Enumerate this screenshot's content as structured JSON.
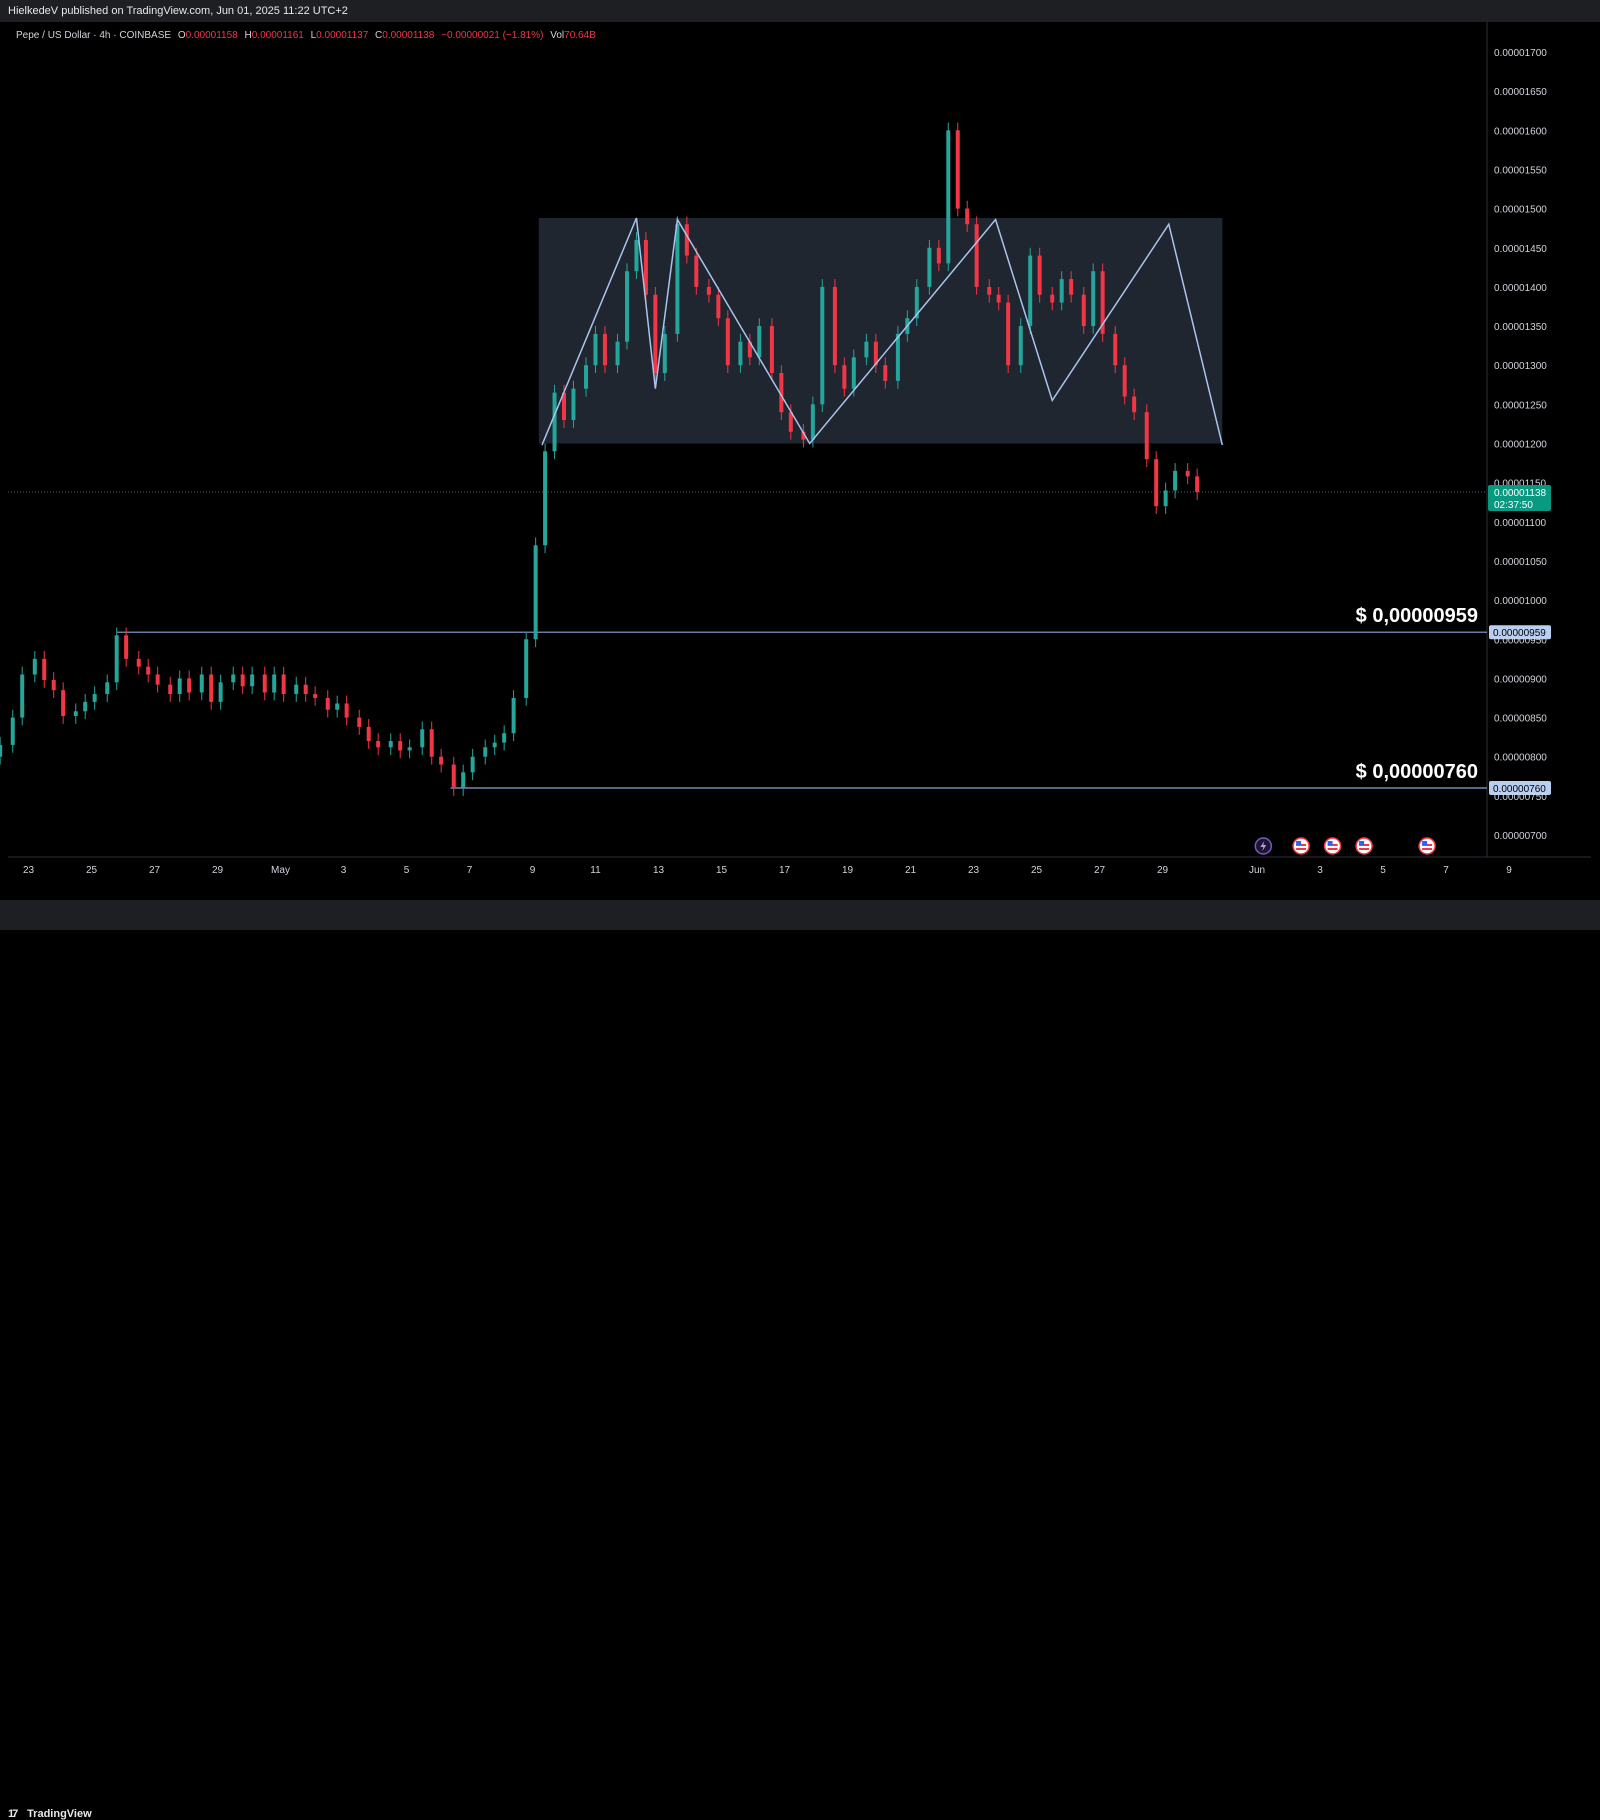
{
  "header": {
    "published": "HielkedeV published on TradingView.com, Jun 01, 2025 11:22 UTC+2"
  },
  "legend": {
    "symbol": "Pepe / US Dollar · 4h · COINBASE",
    "o_label": "O",
    "o_value": "0.00001158",
    "h_label": "H",
    "h_value": "0.00001161",
    "l_label": "L",
    "l_value": "0.00001137",
    "c_label": "C",
    "c_value": "0.00001138",
    "change": "−0.00000021 (−1.81%)",
    "vol_label": "Vol",
    "vol_value": "70.64B"
  },
  "footer": {
    "brand": "TradingView",
    "logo_mark": "17"
  },
  "colors": {
    "up": "#26a69a",
    "down": "#f23645",
    "box": "#1f2630",
    "zigzag": "#a9c4ee",
    "level": "#8aa6d8",
    "price_tag": "#089981"
  },
  "chart_data": {
    "type": "candlestick",
    "timeframe": "4h",
    "y_axis": {
      "ticks": [
        "0.00001700",
        "0.00001650",
        "0.00001600",
        "0.00001550",
        "0.00001500",
        "0.00001450",
        "0.00001400",
        "0.00001350",
        "0.00001300",
        "0.00001250",
        "0.00001200",
        "0.00001150",
        "0.00001100",
        "0.00001050",
        "0.00001000",
        "0.00000950",
        "0.00000900",
        "0.00000850",
        "0.00000800",
        "0.00000750",
        "0.00000700"
      ],
      "tick_values": [
        1700,
        1650,
        1600,
        1550,
        1500,
        1450,
        1400,
        1350,
        1300,
        1250,
        1200,
        1150,
        1100,
        1050,
        1000,
        950,
        900,
        850,
        800,
        750,
        700
      ],
      "unit_scale": "1e-8 USD"
    },
    "x_axis": {
      "ticks": [
        "23",
        "25",
        "27",
        "29",
        "May",
        "3",
        "5",
        "7",
        "9",
        "11",
        "13",
        "15",
        "17",
        "19",
        "21",
        "23",
        "25",
        "27",
        "29",
        "Jun",
        "3",
        "5",
        "7",
        "9"
      ],
      "tick_days": [
        -8,
        -6,
        -4,
        -2,
        0,
        2,
        4,
        6,
        8,
        10,
        12,
        14,
        16,
        18,
        20,
        22,
        24,
        26,
        28,
        31,
        33,
        35,
        37,
        39
      ]
    },
    "current_price": {
      "label": "0.00001138",
      "countdown": "02:37:50",
      "value": 1138
    },
    "levels": [
      {
        "label": "$ 0,00000959",
        "axis_label": "0.00000959",
        "value": 959,
        "from_day": -5.2
      },
      {
        "label": "$ 0,00000760",
        "axis_label": "0.00000760",
        "value": 760,
        "from_day": 5.4
      }
    ],
    "range_box": {
      "day_start": 8.2,
      "day_end": 29.9,
      "top": 1488,
      "bottom": 1200
    },
    "zigzag": [
      {
        "day": 8.3,
        "price": 1198
      },
      {
        "day": 11.3,
        "price": 1488
      },
      {
        "day": 11.9,
        "price": 1270
      },
      {
        "day": 12.6,
        "price": 1486
      },
      {
        "day": 16.8,
        "price": 1200
      },
      {
        "day": 22.7,
        "price": 1486
      },
      {
        "day": 24.5,
        "price": 1255
      },
      {
        "day": 28.2,
        "price": 1480
      },
      {
        "day": 29.9,
        "price": 1198
      }
    ],
    "candles": [
      {
        "d": -8.9,
        "o": 800,
        "c": 815
      },
      {
        "d": -8.5,
        "o": 815,
        "c": 850
      },
      {
        "d": -8.2,
        "o": 850,
        "c": 905
      },
      {
        "d": -7.8,
        "o": 905,
        "c": 925
      },
      {
        "d": -7.5,
        "o": 925,
        "c": 898
      },
      {
        "d": -7.2,
        "o": 898,
        "c": 885
      },
      {
        "d": -6.9,
        "o": 885,
        "c": 852
      },
      {
        "d": -6.5,
        "o": 852,
        "c": 858
      },
      {
        "d": -6.2,
        "o": 858,
        "c": 870
      },
      {
        "d": -5.9,
        "o": 870,
        "c": 880
      },
      {
        "d": -5.5,
        "o": 880,
        "c": 895
      },
      {
        "d": -5.2,
        "o": 895,
        "c": 955
      },
      {
        "d": -4.9,
        "o": 955,
        "c": 925
      },
      {
        "d": -4.5,
        "o": 925,
        "c": 915
      },
      {
        "d": -4.2,
        "o": 915,
        "c": 905
      },
      {
        "d": -3.9,
        "o": 905,
        "c": 892
      },
      {
        "d": -3.5,
        "o": 892,
        "c": 880
      },
      {
        "d": -3.2,
        "o": 880,
        "c": 900
      },
      {
        "d": -2.9,
        "o": 900,
        "c": 882
      },
      {
        "d": -2.5,
        "o": 882,
        "c": 905
      },
      {
        "d": -2.2,
        "o": 905,
        "c": 870
      },
      {
        "d": -1.9,
        "o": 870,
        "c": 895
      },
      {
        "d": -1.5,
        "o": 895,
        "c": 905
      },
      {
        "d": -1.2,
        "o": 905,
        "c": 890
      },
      {
        "d": -0.9,
        "o": 890,
        "c": 905
      },
      {
        "d": -0.5,
        "o": 905,
        "c": 882
      },
      {
        "d": -0.2,
        "o": 882,
        "c": 905
      },
      {
        "d": 0.1,
        "o": 905,
        "c": 880
      },
      {
        "d": 0.5,
        "o": 880,
        "c": 892
      },
      {
        "d": 0.8,
        "o": 892,
        "c": 880
      },
      {
        "d": 1.1,
        "o": 880,
        "c": 875
      },
      {
        "d": 1.5,
        "o": 875,
        "c": 860
      },
      {
        "d": 1.8,
        "o": 860,
        "c": 868
      },
      {
        "d": 2.1,
        "o": 868,
        "c": 850
      },
      {
        "d": 2.5,
        "o": 850,
        "c": 838
      },
      {
        "d": 2.8,
        "o": 838,
        "c": 820
      },
      {
        "d": 3.1,
        "o": 820,
        "c": 812
      },
      {
        "d": 3.5,
        "o": 812,
        "c": 820
      },
      {
        "d": 3.8,
        "o": 820,
        "c": 808
      },
      {
        "d": 4.1,
        "o": 808,
        "c": 812
      },
      {
        "d": 4.5,
        "o": 812,
        "c": 835
      },
      {
        "d": 4.8,
        "o": 835,
        "c": 800
      },
      {
        "d": 5.1,
        "o": 800,
        "c": 790
      },
      {
        "d": 5.5,
        "o": 790,
        "c": 760
      },
      {
        "d": 5.8,
        "o": 760,
        "c": 780
      },
      {
        "d": 6.1,
        "o": 780,
        "c": 800
      },
      {
        "d": 6.5,
        "o": 800,
        "c": 812
      },
      {
        "d": 6.8,
        "o": 812,
        "c": 818
      },
      {
        "d": 7.1,
        "o": 818,
        "c": 830
      },
      {
        "d": 7.4,
        "o": 830,
        "c": 875
      },
      {
        "d": 7.8,
        "o": 875,
        "c": 950
      },
      {
        "d": 8.1,
        "o": 950,
        "c": 1070
      },
      {
        "d": 8.4,
        "o": 1070,
        "c": 1190
      },
      {
        "d": 8.7,
        "o": 1190,
        "c": 1265
      },
      {
        "d": 9.0,
        "o": 1265,
        "c": 1230
      },
      {
        "d": 9.3,
        "o": 1230,
        "c": 1270
      },
      {
        "d": 9.7,
        "o": 1270,
        "c": 1300
      },
      {
        "d": 10.0,
        "o": 1300,
        "c": 1340
      },
      {
        "d": 10.3,
        "o": 1340,
        "c": 1300
      },
      {
        "d": 10.7,
        "o": 1300,
        "c": 1330
      },
      {
        "d": 11.0,
        "o": 1330,
        "c": 1420
      },
      {
        "d": 11.3,
        "o": 1420,
        "c": 1460
      },
      {
        "d": 11.6,
        "o": 1460,
        "c": 1390
      },
      {
        "d": 11.9,
        "o": 1390,
        "c": 1290
      },
      {
        "d": 12.2,
        "o": 1290,
        "c": 1340
      },
      {
        "d": 12.6,
        "o": 1340,
        "c": 1480
      },
      {
        "d": 12.9,
        "o": 1480,
        "c": 1440
      },
      {
        "d": 13.2,
        "o": 1440,
        "c": 1400
      },
      {
        "d": 13.6,
        "o": 1400,
        "c": 1390
      },
      {
        "d": 13.9,
        "o": 1390,
        "c": 1360
      },
      {
        "d": 14.2,
        "o": 1360,
        "c": 1300
      },
      {
        "d": 14.6,
        "o": 1300,
        "c": 1330
      },
      {
        "d": 14.9,
        "o": 1330,
        "c": 1310
      },
      {
        "d": 15.2,
        "o": 1310,
        "c": 1350
      },
      {
        "d": 15.6,
        "o": 1350,
        "c": 1290
      },
      {
        "d": 15.9,
        "o": 1290,
        "c": 1240
      },
      {
        "d": 16.2,
        "o": 1240,
        "c": 1215
      },
      {
        "d": 16.6,
        "o": 1215,
        "c": 1205
      },
      {
        "d": 16.9,
        "o": 1205,
        "c": 1250
      },
      {
        "d": 17.2,
        "o": 1250,
        "c": 1400
      },
      {
        "d": 17.6,
        "o": 1400,
        "c": 1300
      },
      {
        "d": 17.9,
        "o": 1300,
        "c": 1270
      },
      {
        "d": 18.2,
        "o": 1270,
        "c": 1310
      },
      {
        "d": 18.6,
        "o": 1310,
        "c": 1330
      },
      {
        "d": 18.9,
        "o": 1330,
        "c": 1300
      },
      {
        "d": 19.2,
        "o": 1300,
        "c": 1280
      },
      {
        "d": 19.6,
        "o": 1280,
        "c": 1340
      },
      {
        "d": 19.9,
        "o": 1340,
        "c": 1360
      },
      {
        "d": 20.2,
        "o": 1360,
        "c": 1400
      },
      {
        "d": 20.6,
        "o": 1400,
        "c": 1450
      },
      {
        "d": 20.9,
        "o": 1450,
        "c": 1430
      },
      {
        "d": 21.2,
        "o": 1430,
        "c": 1600
      },
      {
        "d": 21.5,
        "o": 1600,
        "c": 1500
      },
      {
        "d": 21.8,
        "o": 1500,
        "c": 1480
      },
      {
        "d": 22.1,
        "o": 1480,
        "c": 1400
      },
      {
        "d": 22.5,
        "o": 1400,
        "c": 1390
      },
      {
        "d": 22.8,
        "o": 1390,
        "c": 1380
      },
      {
        "d": 23.1,
        "o": 1380,
        "c": 1300
      },
      {
        "d": 23.5,
        "o": 1300,
        "c": 1350
      },
      {
        "d": 23.8,
        "o": 1350,
        "c": 1440
      },
      {
        "d": 24.1,
        "o": 1440,
        "c": 1390
      },
      {
        "d": 24.5,
        "o": 1390,
        "c": 1380
      },
      {
        "d": 24.8,
        "o": 1380,
        "c": 1410
      },
      {
        "d": 25.1,
        "o": 1410,
        "c": 1390
      },
      {
        "d": 25.5,
        "o": 1390,
        "c": 1350
      },
      {
        "d": 25.8,
        "o": 1350,
        "c": 1420
      },
      {
        "d": 26.1,
        "o": 1420,
        "c": 1340
      },
      {
        "d": 26.5,
        "o": 1340,
        "c": 1300
      },
      {
        "d": 26.8,
        "o": 1300,
        "c": 1260
      },
      {
        "d": 27.1,
        "o": 1260,
        "c": 1240
      },
      {
        "d": 27.5,
        "o": 1240,
        "c": 1180
      },
      {
        "d": 27.8,
        "o": 1180,
        "c": 1120
      },
      {
        "d": 28.1,
        "o": 1120,
        "c": 1140
      },
      {
        "d": 28.4,
        "o": 1140,
        "c": 1165
      },
      {
        "d": 28.8,
        "o": 1165,
        "c": 1158
      },
      {
        "d": 29.1,
        "o": 1158,
        "c": 1138
      }
    ],
    "event_icons": [
      {
        "day": 31.2,
        "icon": "lightning-icon"
      },
      {
        "day": 32.4,
        "icon": "us-flag-icon"
      },
      {
        "day": 33.4,
        "icon": "us-flag-icon"
      },
      {
        "day": 34.4,
        "icon": "us-flag-icon"
      },
      {
        "day": 36.4,
        "icon": "us-flag-icon"
      }
    ]
  }
}
